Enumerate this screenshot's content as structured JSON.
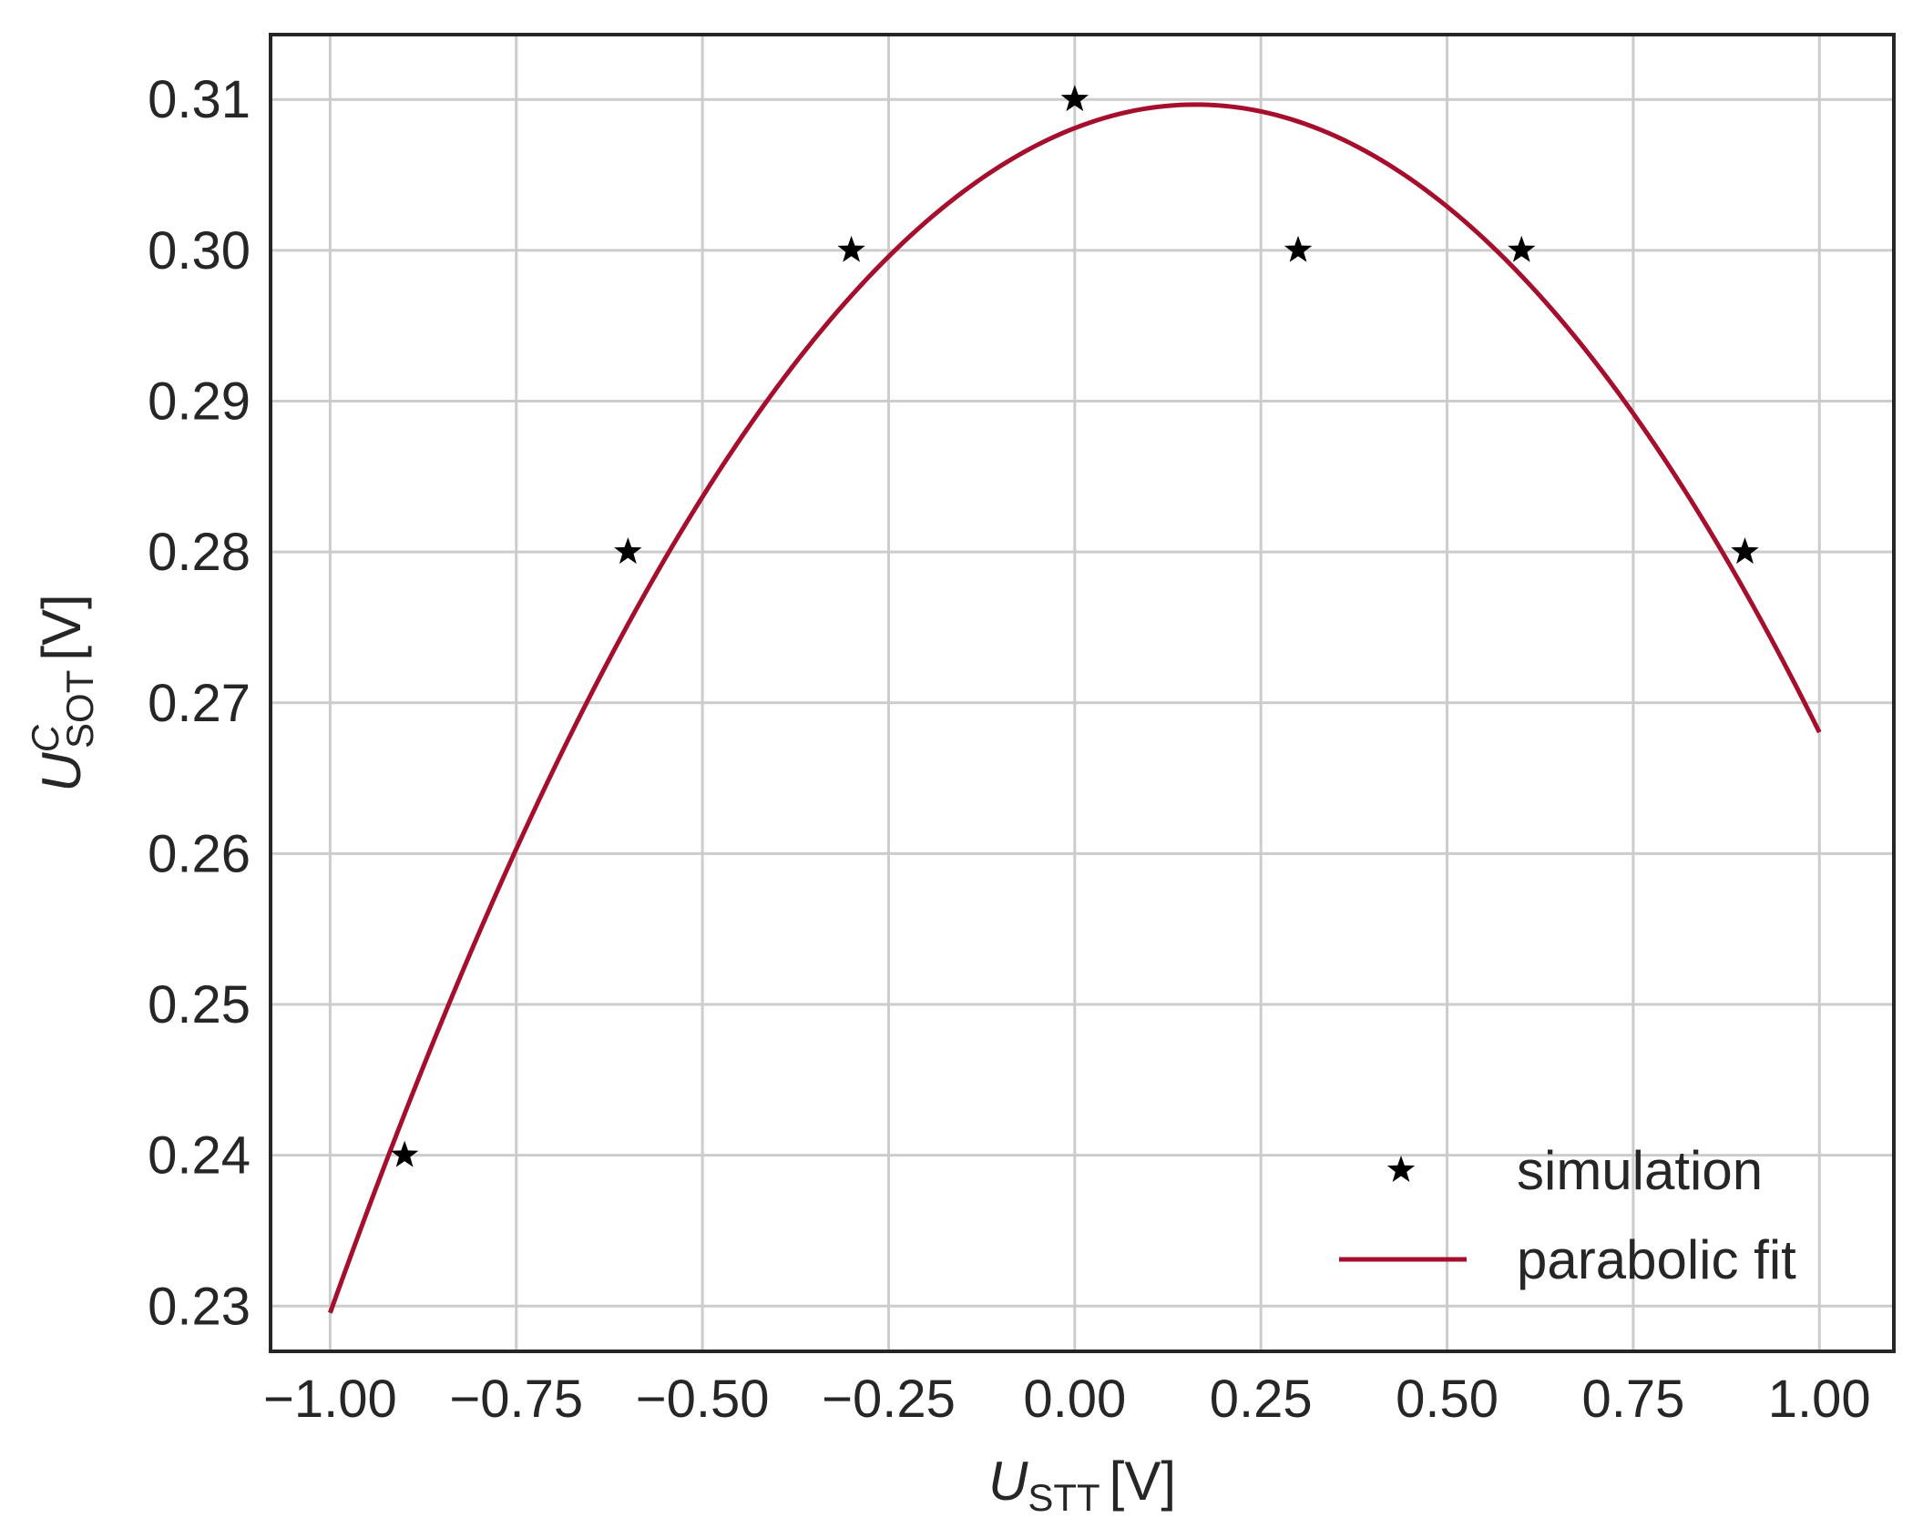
{
  "chart_data": {
    "type": "scatter",
    "x_axis": {
      "label_symbol": "U",
      "label_subscript": "STT",
      "label_unit": "[V]",
      "xlim": [
        -1.08,
        1.1
      ],
      "ticks": [
        -1.0,
        -0.75,
        -0.5,
        -0.25,
        0.0,
        0.25,
        0.5,
        0.75,
        1.0
      ],
      "tick_labels": [
        "−1.00",
        "−0.75",
        "−0.50",
        "−0.25",
        "0.00",
        "0.25",
        "0.50",
        "0.75",
        "1.00"
      ]
    },
    "y_axis": {
      "label_symbol": "U",
      "label_superscript": "C",
      "label_subscript": "SOT",
      "label_unit": "[V]",
      "ylim": [
        0.227,
        0.3143
      ],
      "ticks": [
        0.23,
        0.24,
        0.25,
        0.26,
        0.27,
        0.28,
        0.29,
        0.3,
        0.31
      ],
      "tick_labels": [
        "0.23",
        "0.24",
        "0.25",
        "0.26",
        "0.27",
        "0.28",
        "0.29",
        "0.30",
        "0.31"
      ]
    },
    "grid": true,
    "legend_position": "bottom-right",
    "series": [
      {
        "name": "simulation",
        "kind": "scatter",
        "marker": "star",
        "color": "#000000",
        "x": [
          -0.9,
          -0.6,
          -0.3,
          0.0,
          0.3,
          0.6,
          0.9
        ],
        "y": [
          0.24,
          0.28,
          0.3,
          0.31,
          0.3,
          0.3,
          0.28
        ]
      },
      {
        "name": "parabolic fit",
        "kind": "line",
        "color": "#a50f2d",
        "x_range": [
          -1.0,
          1.0
        ],
        "coefficients": {
          "a": -0.0593,
          "b": 0.01925,
          "c": 0.3081
        }
      }
    ]
  }
}
